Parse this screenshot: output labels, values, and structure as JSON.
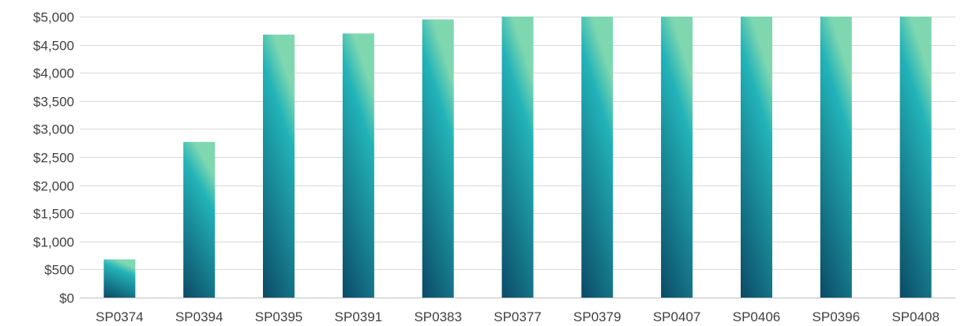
{
  "chart_data": {
    "type": "bar",
    "categories": [
      "SP0374",
      "SP0394",
      "SP0395",
      "SP0391",
      "SP0383",
      "SP0377",
      "SP0379",
      "SP0407",
      "SP0406",
      "SP0396",
      "SP0408"
    ],
    "values": [
      680,
      2770,
      4680,
      4700,
      4950,
      5000,
      5000,
      5000,
      5000,
      5000,
      5000
    ],
    "title": "",
    "xlabel": "",
    "ylabel": "",
    "ylim": [
      0,
      5000
    ],
    "yticks": [
      "$0",
      "$500",
      "$1,000",
      "$1,500",
      "$2,000",
      "$2,500",
      "$3,000",
      "$3,500",
      "$4,000",
      "$4,500",
      "$5,000"
    ],
    "grid": true,
    "colors": {
      "bar_top": "#7fd7b0",
      "bar_mid": "#22b3b8",
      "bar_bottom": "#0b4a66",
      "grid": "#d9d9d9",
      "text": "#404040"
    }
  }
}
